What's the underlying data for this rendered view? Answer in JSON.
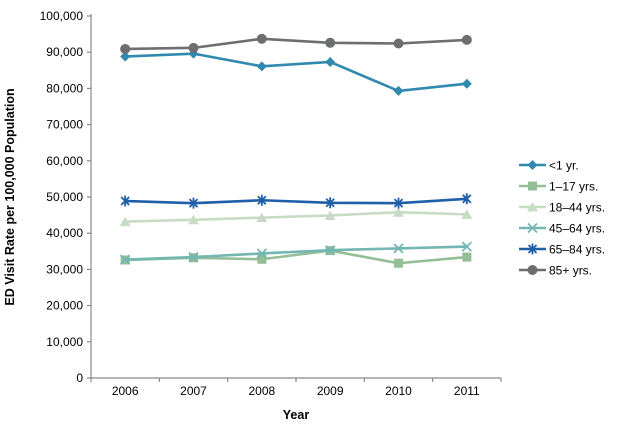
{
  "chart_data": {
    "type": "line",
    "title": "",
    "xlabel": "Year",
    "ylabel": "ED Visit Rate per 100,000 Population",
    "x": [
      "2006",
      "2007",
      "2008",
      "2009",
      "2010",
      "2011"
    ],
    "series": [
      {
        "name": "<1 yr.",
        "marker": "diamond",
        "color": "#3189AF",
        "values": [
          88800,
          89600,
          86100,
          87300,
          79300,
          81300
        ]
      },
      {
        "name": "1–17 yrs.",
        "marker": "square",
        "color": "#94BE95",
        "values": [
          32600,
          33200,
          32800,
          35200,
          31700,
          33400
        ]
      },
      {
        "name": "18–44 yrs.",
        "marker": "triangle",
        "color": "#C8DCC5",
        "values": [
          43200,
          43700,
          44300,
          44900,
          45800,
          45200
        ]
      },
      {
        "name": "45–64 yrs.",
        "marker": "x",
        "color": "#74B6B2",
        "values": [
          32700,
          33400,
          34400,
          35300,
          35800,
          36300
        ]
      },
      {
        "name": "65–84 yrs.",
        "marker": "asterisk",
        "color": "#1F5EA8",
        "values": [
          48900,
          48300,
          49100,
          48400,
          48300,
          49500
        ]
      },
      {
        "name": "85+ yrs.",
        "marker": "circle",
        "color": "#6D6E70",
        "values": [
          90900,
          91200,
          93700,
          92600,
          92400,
          93400
        ]
      }
    ],
    "ylim": [
      0,
      100000
    ],
    "ytick_step": 10000,
    "ytick_labels": [
      "0",
      "10,000",
      "20,000",
      "30,000",
      "40,000",
      "50,000",
      "60,000",
      "70,000",
      "80,000",
      "90,000",
      "100,000"
    ],
    "legend_position": "right",
    "grid": false,
    "axis_color": "#898989",
    "text_color": "#000000"
  }
}
